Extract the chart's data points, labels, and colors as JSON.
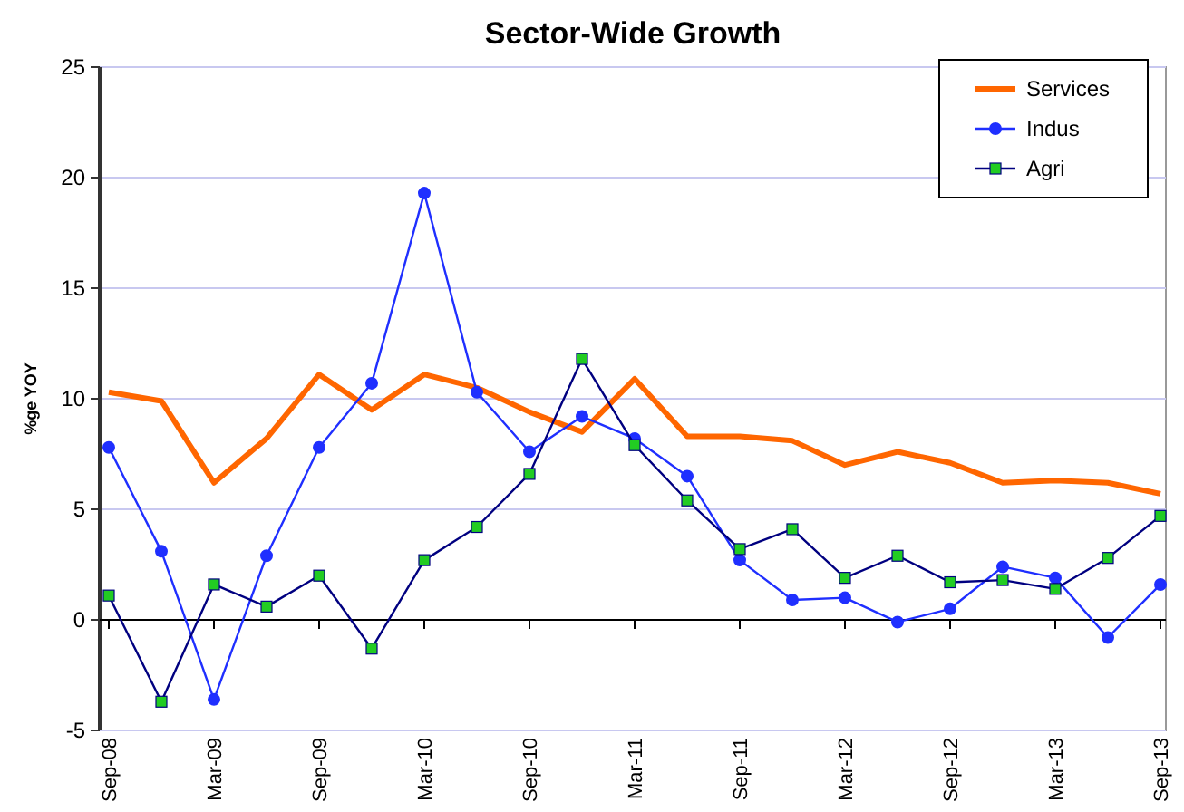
{
  "chart_data": {
    "type": "line",
    "title": "Sector-Wide Growth",
    "ylabel": "%ge YOY",
    "categories": [
      "Sep-08",
      null,
      "Mar-09",
      null,
      "Sep-09",
      null,
      "Mar-10",
      null,
      "Sep-10",
      null,
      "Mar-11",
      null,
      "Sep-11",
      null,
      "Mar-12",
      null,
      "Sep-12",
      null,
      "Mar-13",
      null,
      "Sep-13"
    ],
    "series": [
      {
        "name": "Services",
        "color": "#ff6600",
        "marker": "none",
        "values": [
          10.3,
          9.9,
          6.2,
          8.2,
          11.1,
          9.5,
          11.1,
          10.5,
          9.4,
          8.5,
          10.9,
          8.3,
          8.3,
          8.1,
          7.0,
          7.6,
          7.1,
          6.2,
          6.3,
          6.2,
          5.7
        ]
      },
      {
        "name": "Indus",
        "color": "#1f2fff",
        "marker": "circle",
        "values": [
          7.8,
          3.1,
          -3.6,
          2.9,
          7.8,
          10.7,
          19.3,
          10.3,
          7.6,
          9.2,
          8.2,
          6.5,
          2.7,
          0.9,
          1.0,
          -0.1,
          0.5,
          2.4,
          1.9,
          -0.8,
          1.6
        ]
      },
      {
        "name": "Agri",
        "color": "#000080",
        "marker": "square",
        "values": [
          1.1,
          -3.7,
          1.6,
          0.6,
          2.0,
          -1.3,
          2.7,
          4.2,
          6.6,
          11.8,
          7.9,
          5.4,
          3.2,
          4.1,
          1.9,
          2.9,
          1.7,
          1.8,
          1.4,
          2.8,
          4.7
        ]
      }
    ],
    "ylim": [
      -5,
      25
    ],
    "yticks": [
      -5,
      0,
      5,
      10,
      15,
      20,
      25
    ],
    "grid": "y",
    "legend": "top right"
  }
}
